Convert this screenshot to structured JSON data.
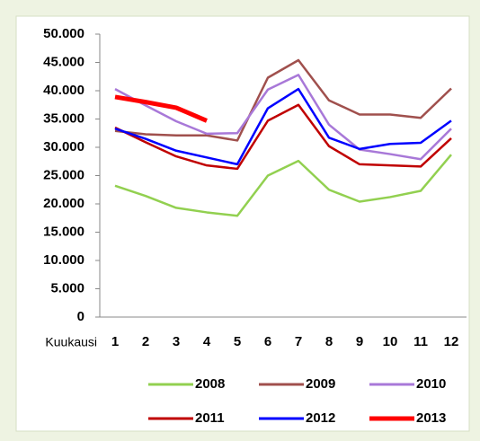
{
  "chart_data": {
    "type": "line",
    "x_label": "Kuukausi",
    "categories": [
      "1",
      "2",
      "3",
      "4",
      "5",
      "6",
      "7",
      "8",
      "9",
      "10",
      "11",
      "12"
    ],
    "series": [
      {
        "name": "2008",
        "color": "#92d050",
        "values": [
          23200,
          21400,
          19300,
          18500,
          17900,
          25000,
          27600,
          22500,
          20400,
          21200,
          22300,
          28700
        ]
      },
      {
        "name": "2009",
        "color": "#a0504d",
        "values": [
          32900,
          32300,
          32100,
          32100,
          31200,
          42300,
          45400,
          38300,
          35800,
          35800,
          35200,
          40400
        ]
      },
      {
        "name": "2010",
        "color": "#a878d8",
        "values": [
          40300,
          37400,
          34600,
          32400,
          32500,
          40200,
          42800,
          34000,
          29600,
          28800,
          27900,
          33300
        ]
      },
      {
        "name": "2011",
        "color": "#c00000",
        "values": [
          33500,
          30900,
          28400,
          26800,
          26200,
          34700,
          37500,
          30200,
          27000,
          26800,
          26600,
          31600
        ]
      },
      {
        "name": "2012",
        "color": "#0000ff",
        "values": [
          33300,
          31500,
          29400,
          28200,
          27000,
          36900,
          40300,
          31700,
          29700,
          30600,
          30800,
          34700
        ]
      },
      {
        "name": "2013",
        "color": "#ff0000",
        "width": 5,
        "values": [
          38900,
          38000,
          37000,
          34700,
          null,
          null,
          null,
          null,
          null,
          null,
          null,
          null
        ]
      }
    ],
    "ylim": [
      0,
      50000
    ],
    "yticks": [
      0,
      {
        "value": 5000,
        "label": "5.000"
      },
      {
        "value": 10000,
        "label": "10.000"
      },
      {
        "value": 15000,
        "label": "15.000"
      },
      {
        "value": 20000,
        "label": "20.000"
      },
      {
        "value": 25000,
        "label": "25.000"
      },
      {
        "value": 30000,
        "label": "30.000"
      },
      {
        "value": 35000,
        "label": "35.000"
      },
      {
        "value": 40000,
        "label": "40.000"
      },
      {
        "value": 45000,
        "label": "45.000"
      },
      {
        "value": 50000,
        "label": "50.000"
      }
    ],
    "grid": false,
    "legend": "bottom"
  }
}
